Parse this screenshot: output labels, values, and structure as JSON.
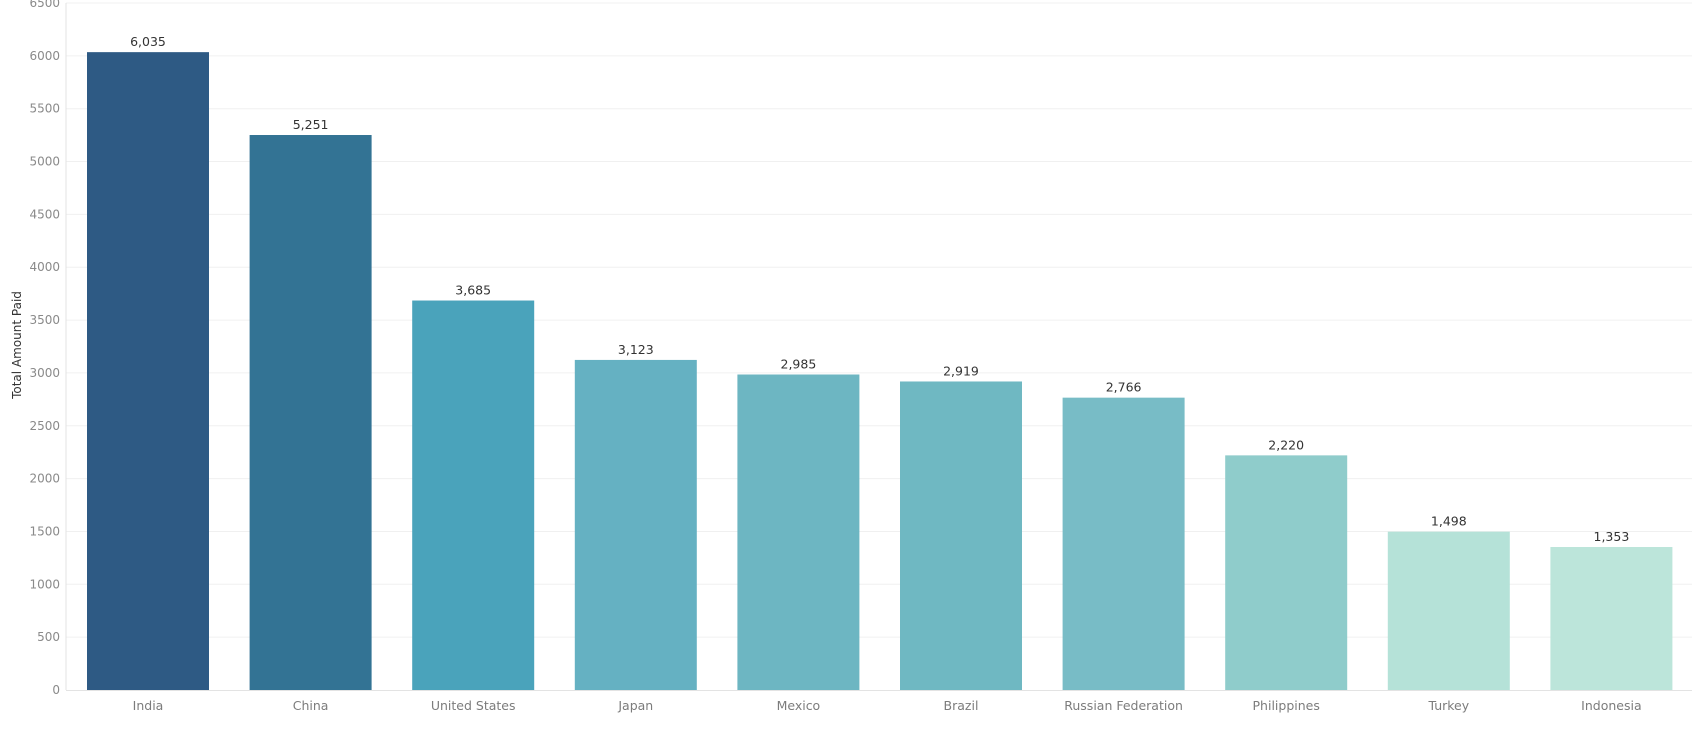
{
  "chart_data": {
    "type": "bar",
    "ylabel": "Total Amount Paid",
    "ylim": [
      0,
      6500
    ],
    "yticks": [
      0,
      500,
      1000,
      1500,
      2000,
      2500,
      3000,
      3500,
      4000,
      4500,
      5000,
      5500,
      6000,
      6500
    ],
    "grid": true,
    "categories": [
      "India",
      "China",
      "United States",
      "Japan",
      "Mexico",
      "Brazil",
      "Russian Federation",
      "Philippines",
      "Turkey",
      "Indonesia"
    ],
    "values": [
      6035,
      5251,
      3685,
      3123,
      2985,
      2919,
      2766,
      2220,
      1498,
      1353
    ],
    "data_labels": [
      "6,035",
      "5,251",
      "3,685",
      "3,123",
      "2,985",
      "2,919",
      "2,766",
      "2,220",
      "1,498",
      "1,353"
    ],
    "colors": [
      "#2e5a84",
      "#337394",
      "#4aa3bb",
      "#65b1c2",
      "#6db6c2",
      "#6fb8c2",
      "#78bcc6",
      "#8fcccb",
      "#b5e2d8",
      "#bce5da"
    ]
  }
}
